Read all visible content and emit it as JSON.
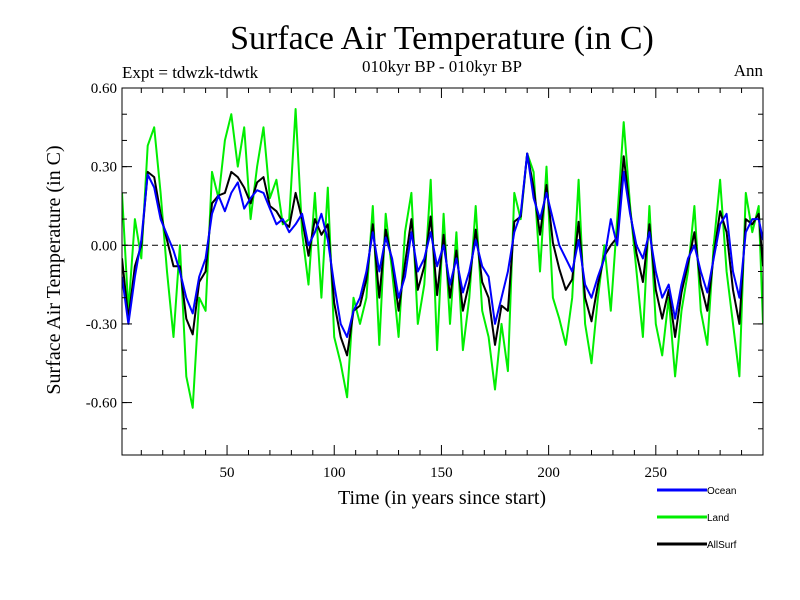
{
  "chart_data": {
    "type": "line",
    "title": "Surface Air Temperature (in C)",
    "subtitle": "010kyr BP - 010kyr BP",
    "left_label": "Expt = tdwzk-tdwtk",
    "right_label": "Ann",
    "xlabel": "Time (in years since start)",
    "ylabel": "Surface Air Temperature (in C)",
    "xlim": [
      1,
      300
    ],
    "ylim": [
      -0.8,
      0.6
    ],
    "x_ticks": [
      50,
      100,
      150,
      200,
      250
    ],
    "x_tick_labels": [
      "50",
      "100",
      "150",
      "200",
      "250"
    ],
    "y_ticks": [
      0.6,
      0.3,
      0.0,
      -0.3,
      -0.6
    ],
    "y_tick_labels": [
      "0.60",
      "0.30",
      "0.00",
      "-0.30",
      "-0.60"
    ],
    "zero_line": true,
    "grid": false,
    "legend_position": "bottom-right",
    "series": [
      {
        "name": "Ocean",
        "color": "#0000ff",
        "x": [
          1,
          4,
          7,
          10,
          13,
          16,
          19,
          22,
          25,
          28,
          31,
          34,
          37,
          40,
          43,
          46,
          49,
          52,
          55,
          58,
          61,
          64,
          67,
          70,
          73,
          76,
          79,
          82,
          85,
          88,
          91,
          94,
          97,
          100,
          103,
          106,
          109,
          112,
          115,
          118,
          121,
          124,
          127,
          130,
          133,
          136,
          139,
          142,
          145,
          148,
          151,
          154,
          157,
          160,
          163,
          166,
          169,
          172,
          175,
          178,
          181,
          184,
          187,
          190,
          193,
          196,
          199,
          202,
          205,
          208,
          211,
          214,
          217,
          220,
          223,
          226,
          229,
          232,
          235,
          238,
          241,
          244,
          247,
          250,
          253,
          256,
          259,
          262,
          265,
          268,
          271,
          274,
          277,
          280,
          283,
          286,
          289,
          292,
          295,
          298,
          300
        ],
        "y": [
          -0.12,
          -0.3,
          -0.12,
          0.02,
          0.27,
          0.22,
          0.1,
          0.04,
          -0.02,
          -0.1,
          -0.2,
          -0.26,
          -0.12,
          -0.05,
          0.12,
          0.19,
          0.13,
          0.2,
          0.24,
          0.14,
          0.18,
          0.21,
          0.2,
          0.14,
          0.08,
          0.1,
          0.05,
          0.08,
          0.12,
          0.0,
          0.05,
          0.12,
          0.02,
          -0.15,
          -0.3,
          -0.35,
          -0.25,
          -0.2,
          -0.1,
          0.05,
          -0.1,
          0.03,
          -0.05,
          -0.2,
          -0.12,
          0.05,
          -0.1,
          -0.05,
          0.05,
          -0.08,
          0.0,
          -0.15,
          -0.05,
          -0.18,
          -0.1,
          0.02,
          -0.08,
          -0.12,
          -0.3,
          -0.2,
          -0.1,
          0.05,
          0.12,
          0.35,
          0.18,
          0.1,
          0.2,
          0.1,
          0.0,
          -0.05,
          -0.1,
          0.02,
          -0.15,
          -0.2,
          -0.12,
          -0.05,
          0.1,
          0.0,
          0.28,
          0.12,
          0.0,
          -0.05,
          0.05,
          -0.1,
          -0.2,
          -0.15,
          -0.28,
          -0.15,
          -0.05,
          0.0,
          -0.1,
          -0.18,
          -0.05,
          0.08,
          0.12,
          -0.1,
          -0.2,
          0.05,
          0.1,
          0.1,
          0.02
        ]
      },
      {
        "name": "Land",
        "color": "#00ee00",
        "x": [
          1,
          4,
          7,
          10,
          13,
          16,
          19,
          22,
          25,
          28,
          31,
          34,
          37,
          40,
          43,
          46,
          49,
          52,
          55,
          58,
          61,
          64,
          67,
          70,
          73,
          76,
          79,
          82,
          85,
          88,
          91,
          94,
          97,
          100,
          103,
          106,
          109,
          112,
          115,
          118,
          121,
          124,
          127,
          130,
          133,
          136,
          139,
          142,
          145,
          148,
          151,
          154,
          157,
          160,
          163,
          166,
          169,
          172,
          175,
          178,
          181,
          184,
          187,
          190,
          193,
          196,
          199,
          202,
          205,
          208,
          211,
          214,
          217,
          220,
          223,
          226,
          229,
          232,
          235,
          238,
          241,
          244,
          247,
          250,
          253,
          256,
          259,
          262,
          265,
          268,
          271,
          274,
          277,
          280,
          283,
          286,
          289,
          292,
          295,
          298,
          300
        ],
        "y": [
          0.2,
          -0.25,
          0.1,
          -0.05,
          0.38,
          0.45,
          0.2,
          -0.1,
          -0.35,
          0.0,
          -0.5,
          -0.62,
          -0.2,
          -0.25,
          0.28,
          0.18,
          0.4,
          0.5,
          0.3,
          0.45,
          0.1,
          0.3,
          0.45,
          0.18,
          0.25,
          0.08,
          0.1,
          0.52,
          0.05,
          -0.15,
          0.2,
          -0.2,
          0.22,
          -0.35,
          -0.45,
          -0.58,
          -0.2,
          -0.3,
          -0.2,
          0.15,
          -0.38,
          0.12,
          -0.1,
          -0.35,
          0.05,
          0.2,
          -0.3,
          -0.15,
          0.25,
          -0.4,
          0.12,
          -0.3,
          0.05,
          -0.4,
          -0.2,
          0.15,
          -0.25,
          -0.35,
          -0.55,
          -0.3,
          -0.48,
          0.2,
          0.1,
          0.35,
          0.28,
          -0.1,
          0.3,
          -0.2,
          -0.28,
          -0.38,
          -0.2,
          0.25,
          -0.3,
          -0.45,
          -0.2,
          0.0,
          -0.25,
          0.1,
          0.47,
          0.15,
          -0.1,
          -0.35,
          0.15,
          -0.3,
          -0.42,
          -0.2,
          -0.5,
          -0.25,
          -0.1,
          0.15,
          -0.25,
          -0.38,
          0.0,
          0.25,
          -0.1,
          -0.3,
          -0.5,
          0.2,
          0.05,
          0.15,
          -0.3
        ]
      },
      {
        "name": "AllSurf",
        "color": "#000000",
        "x": [
          1,
          4,
          7,
          10,
          13,
          16,
          19,
          22,
          25,
          28,
          31,
          34,
          37,
          40,
          43,
          46,
          49,
          52,
          55,
          58,
          61,
          64,
          67,
          70,
          73,
          76,
          79,
          82,
          85,
          88,
          91,
          94,
          97,
          100,
          103,
          106,
          109,
          112,
          115,
          118,
          121,
          124,
          127,
          130,
          133,
          136,
          139,
          142,
          145,
          148,
          151,
          154,
          157,
          160,
          163,
          166,
          169,
          172,
          175,
          178,
          181,
          184,
          187,
          190,
          193,
          196,
          199,
          202,
          205,
          208,
          211,
          214,
          217,
          220,
          223,
          226,
          229,
          232,
          235,
          238,
          241,
          244,
          247,
          250,
          253,
          256,
          259,
          262,
          265,
          268,
          271,
          274,
          277,
          280,
          283,
          286,
          289,
          292,
          295,
          298,
          300
        ],
        "y": [
          -0.05,
          -0.28,
          -0.08,
          0.0,
          0.28,
          0.26,
          0.12,
          0.02,
          -0.08,
          -0.08,
          -0.28,
          -0.34,
          -0.14,
          -0.1,
          0.16,
          0.19,
          0.2,
          0.28,
          0.26,
          0.22,
          0.16,
          0.24,
          0.26,
          0.15,
          0.13,
          0.09,
          0.07,
          0.2,
          0.1,
          -0.04,
          0.1,
          0.04,
          0.08,
          -0.22,
          -0.35,
          -0.42,
          -0.25,
          -0.23,
          -0.13,
          0.08,
          -0.2,
          0.06,
          -0.06,
          -0.25,
          -0.07,
          0.1,
          -0.17,
          -0.08,
          0.11,
          -0.19,
          0.04,
          -0.2,
          -0.02,
          -0.25,
          -0.14,
          0.06,
          -0.14,
          -0.2,
          -0.38,
          -0.23,
          -0.25,
          0.09,
          0.11,
          0.35,
          0.22,
          0.04,
          0.23,
          0.01,
          -0.09,
          -0.17,
          -0.13,
          0.09,
          -0.2,
          -0.29,
          -0.15,
          -0.04,
          0.0,
          0.03,
          0.34,
          0.13,
          -0.03,
          -0.14,
          0.08,
          -0.17,
          -0.28,
          -0.17,
          -0.35,
          -0.18,
          -0.07,
          0.05,
          -0.15,
          -0.25,
          -0.04,
          0.13,
          0.05,
          -0.17,
          -0.3,
          0.1,
          0.08,
          0.12,
          -0.08
        ]
      }
    ]
  }
}
